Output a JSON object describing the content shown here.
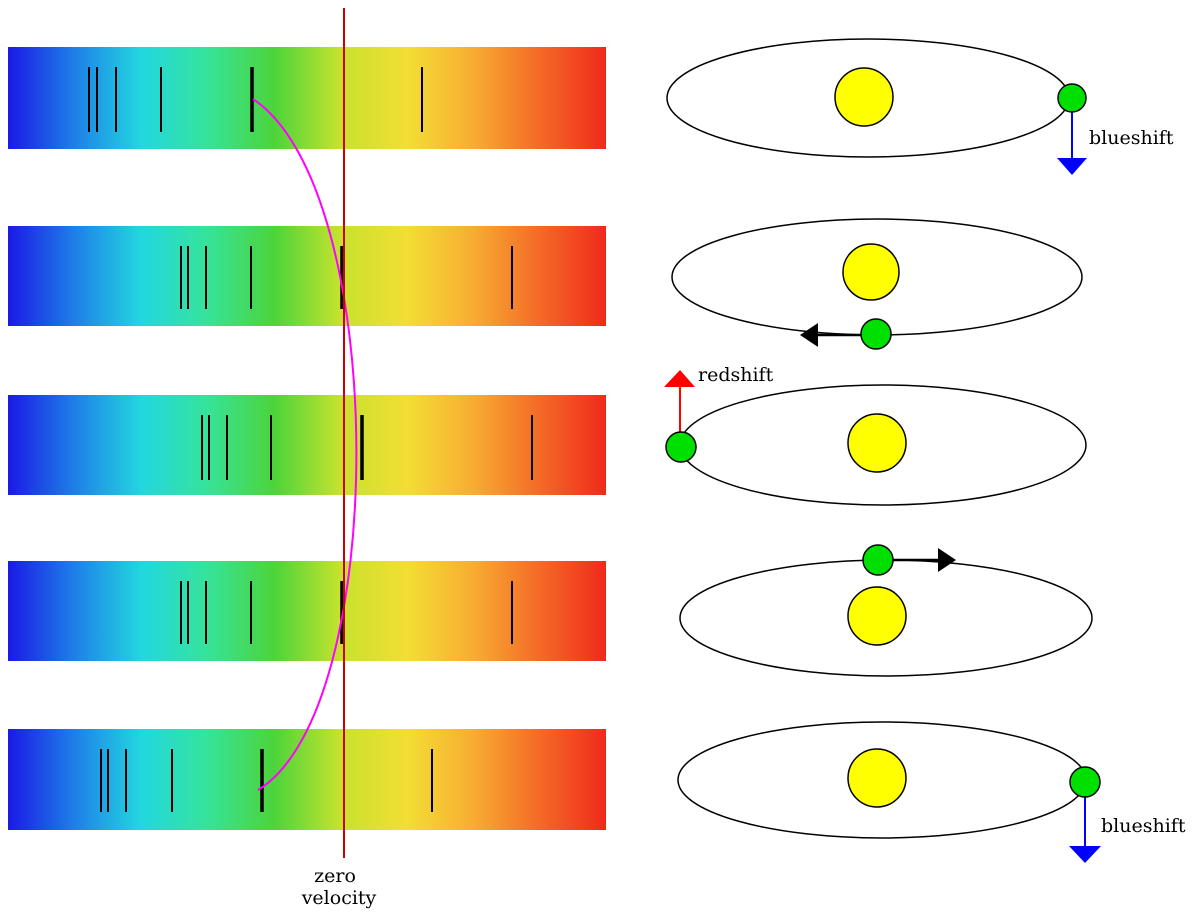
{
  "colors": {
    "spectrum_stops": [
      "#1a1ae6",
      "#1e7fe8",
      "#22d7df",
      "#36e39a",
      "#4cd43a",
      "#c6e22e",
      "#f3de34",
      "#f7ad33",
      "#f46a27",
      "#ef2a1c"
    ],
    "zero_velocity_line": "#cc0000",
    "curve": "#ff00ff",
    "star": "#ffff00",
    "planet": "#00e000",
    "blueshift_arrow": "#0000ff",
    "redshift_arrow": "#ff0000",
    "motion_arrow": "#000000"
  },
  "labels": {
    "zero_velocity_line1": "zero",
    "zero_velocity_line2": "velocity"
  },
  "panels": [
    {
      "id": "panel-1",
      "planet_position": "right",
      "arrow": "blueshift",
      "arrow_label": "blueshift"
    },
    {
      "id": "panel-2",
      "planet_position": "front",
      "arrow": "motion-left",
      "arrow_label": ""
    },
    {
      "id": "panel-3",
      "planet_position": "left",
      "arrow": "redshift",
      "arrow_label": "redshift"
    },
    {
      "id": "panel-4",
      "planet_position": "back",
      "arrow": "motion-right",
      "arrow_label": ""
    },
    {
      "id": "panel-5",
      "planet_position": "right",
      "arrow": "blueshift",
      "arrow_label": "blueshift"
    }
  ]
}
